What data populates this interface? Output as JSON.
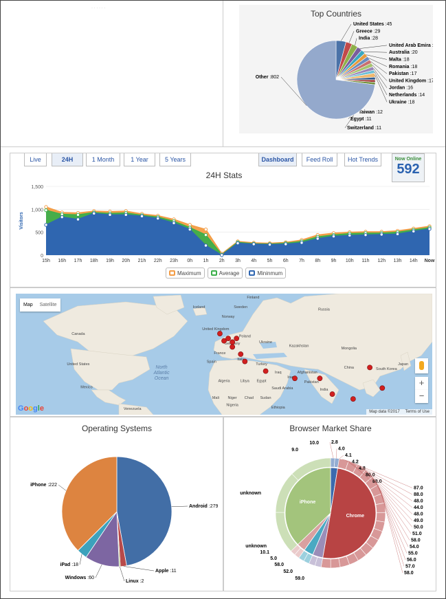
{
  "top_left": {
    "faint_text": "·  ·  ·  ·  ·  ·"
  },
  "top_countries": {
    "title": "Top Countries",
    "chart_data": {
      "type": "pie",
      "title": "Top Countries",
      "slices": [
        {
          "label": "United States",
          "value": 45,
          "color": "#4a72a8"
        },
        {
          "label": "Greece",
          "value": 29,
          "color": "#c24a4a"
        },
        {
          "label": "India",
          "value": 28,
          "color": "#8eb04a"
        },
        {
          "label": "United Arab Emira",
          "value": 23,
          "color": "#7a5e9e"
        },
        {
          "label": "Australia",
          "value": 20,
          "color": "#3aa8c0"
        },
        {
          "label": "Malta",
          "value": 18,
          "color": "#e59a3e"
        },
        {
          "label": "Romania",
          "value": 18,
          "color": "#6a8cc0"
        },
        {
          "label": "Pakistan",
          "value": 17,
          "color": "#c87070"
        },
        {
          "label": "United Kingdom",
          "value": 17,
          "color": "#a6c46e"
        },
        {
          "label": "Jordan",
          "value": 16,
          "color": "#9a86b8"
        },
        {
          "label": "Netherlands",
          "value": 14,
          "color": "#6cc0d6"
        },
        {
          "label": "Ukraine",
          "value": 18,
          "color": "#f0b86e"
        },
        {
          "label": "Taiwan",
          "value": 12,
          "color": "#2f5a8e"
        },
        {
          "label": "Egypt",
          "value": 11,
          "color": "#9e3535"
        },
        {
          "label": "Switzerland",
          "value": 11,
          "color": "#6e8e35"
        },
        {
          "label": "Other",
          "value": 802,
          "color": "#94a9cc"
        }
      ]
    }
  },
  "stats": {
    "tabs": [
      "Live",
      "24H",
      "1 Month",
      "1 Year",
      "5 Years"
    ],
    "active_tab": "24H",
    "right_tabs": [
      "Dashboard",
      "Feed Roll",
      "Hot Trends"
    ],
    "active_right_tab": "Dashboard",
    "now_online_label": "Now Online",
    "now_online_value": "592",
    "chart_data": {
      "type": "area",
      "title": "24H Stats",
      "ylabel": "Visitors",
      "ylim": [
        0,
        1500
      ],
      "yticks": [
        "0",
        "500",
        "1,000",
        "1,500"
      ],
      "categories": [
        "15h",
        "16h",
        "17h",
        "18h",
        "19h",
        "20h",
        "21h",
        "22h",
        "23h",
        "0h",
        "1h",
        "2h",
        "3h",
        "4h",
        "5h",
        "6h",
        "7h",
        "8h",
        "9h",
        "10h",
        "11h",
        "12h",
        "13h",
        "14h",
        "Now"
      ],
      "series": [
        {
          "name": "Maximum",
          "color": "#f39c45",
          "values": [
            1050,
            930,
            920,
            960,
            950,
            960,
            900,
            860,
            780,
            660,
            560,
            30,
            300,
            270,
            260,
            280,
            330,
            440,
            480,
            500,
            510,
            510,
            530,
            580,
            630
          ]
        },
        {
          "name": "Average",
          "color": "#3cae4a",
          "values": [
            980,
            890,
            880,
            930,
            910,
            920,
            870,
            830,
            740,
            600,
            440,
            10,
            280,
            250,
            240,
            260,
            300,
            400,
            440,
            470,
            480,
            480,
            500,
            550,
            600
          ]
        },
        {
          "name": "Mininmum",
          "color": "#2f66b0",
          "values": [
            660,
            830,
            780,
            910,
            880,
            880,
            850,
            800,
            700,
            560,
            210,
            0,
            260,
            240,
            230,
            240,
            270,
            360,
            410,
            430,
            440,
            450,
            460,
            520,
            570
          ]
        }
      ]
    }
  },
  "map": {
    "type_buttons": [
      "Map",
      "Satellite"
    ],
    "labels": [
      {
        "text": "Iceland",
        "lx": 0.44,
        "ly": 0.12
      },
      {
        "text": "Finland",
        "lx": 0.57,
        "ly": 0.04
      },
      {
        "text": "Sweden",
        "lx": 0.54,
        "ly": 0.12
      },
      {
        "text": "Norway",
        "lx": 0.51,
        "ly": 0.2
      },
      {
        "text": "Russia",
        "lx": 0.74,
        "ly": 0.14
      },
      {
        "text": "Canada",
        "lx": 0.15,
        "ly": 0.34
      },
      {
        "text": "United Kingdom",
        "lx": 0.48,
        "ly": 0.3
      },
      {
        "text": "Poland",
        "lx": 0.55,
        "ly": 0.36
      },
      {
        "text": "Ukraine",
        "lx": 0.6,
        "ly": 0.41
      },
      {
        "text": "Germany",
        "lx": 0.52,
        "ly": 0.42
      },
      {
        "text": "Kazakhstan",
        "lx": 0.68,
        "ly": 0.44
      },
      {
        "text": "Mongolia",
        "lx": 0.8,
        "ly": 0.46
      },
      {
        "text": "France",
        "lx": 0.49,
        "ly": 0.5
      },
      {
        "text": "Spain",
        "lx": 0.47,
        "ly": 0.57
      },
      {
        "text": "Italy",
        "lx": 0.54,
        "ly": 0.55
      },
      {
        "text": "Turkey",
        "lx": 0.59,
        "ly": 0.59
      },
      {
        "text": "United States",
        "lx": 0.15,
        "ly": 0.59
      },
      {
        "text": "North\nAtlantic\nOcean",
        "lx": 0.35,
        "ly": 0.62
      },
      {
        "text": "China",
        "lx": 0.8,
        "ly": 0.62
      },
      {
        "text": "South Korea",
        "lx": 0.89,
        "ly": 0.63
      },
      {
        "text": "Japan",
        "lx": 0.93,
        "ly": 0.59
      },
      {
        "text": "Iraq",
        "lx": 0.63,
        "ly": 0.66
      },
      {
        "text": "Iran",
        "lx": 0.66,
        "ly": 0.7
      },
      {
        "text": "Afghanistan",
        "lx": 0.7,
        "ly": 0.66
      },
      {
        "text": "Algeria",
        "lx": 0.5,
        "ly": 0.73
      },
      {
        "text": "Libya",
        "lx": 0.55,
        "ly": 0.73
      },
      {
        "text": "Egypt",
        "lx": 0.59,
        "ly": 0.73
      },
      {
        "text": "Pakistan",
        "lx": 0.71,
        "ly": 0.74
      },
      {
        "text": "Saudi Arabia",
        "lx": 0.64,
        "ly": 0.79
      },
      {
        "text": "India",
        "lx": 0.74,
        "ly": 0.8
      },
      {
        "text": "Mexico",
        "lx": 0.17,
        "ly": 0.78
      },
      {
        "text": "Mali",
        "lx": 0.48,
        "ly": 0.87
      },
      {
        "text": "Niger",
        "lx": 0.52,
        "ly": 0.87
      },
      {
        "text": "Chad",
        "lx": 0.56,
        "ly": 0.87
      },
      {
        "text": "Sudan",
        "lx": 0.6,
        "ly": 0.87
      },
      {
        "text": "Nigeria",
        "lx": 0.52,
        "ly": 0.93
      },
      {
        "text": "Ethiopia",
        "lx": 0.63,
        "ly": 0.95
      },
      {
        "text": "Venezuela",
        "lx": 0.28,
        "ly": 0.96
      }
    ],
    "markers": [
      {
        "lx": 0.49,
        "ly": 0.33
      },
      {
        "lx": 0.5,
        "ly": 0.39
      },
      {
        "lx": 0.51,
        "ly": 0.37
      },
      {
        "lx": 0.52,
        "ly": 0.4
      },
      {
        "lx": 0.53,
        "ly": 0.37
      },
      {
        "lx": 0.52,
        "ly": 0.44
      },
      {
        "lx": 0.54,
        "ly": 0.5
      },
      {
        "lx": 0.55,
        "ly": 0.56
      },
      {
        "lx": 0.6,
        "ly": 0.64
      },
      {
        "lx": 0.67,
        "ly": 0.7
      },
      {
        "lx": 0.73,
        "ly": 0.7
      },
      {
        "lx": 0.76,
        "ly": 0.83
      },
      {
        "lx": 0.85,
        "ly": 0.61
      },
      {
        "lx": 0.88,
        "ly": 0.78
      },
      {
        "lx": 0.81,
        "ly": 0.87
      }
    ],
    "attribution": [
      "Map data ©2017",
      "Terms of Use"
    ],
    "google": "Google"
  },
  "os": {
    "title": "Operating Systems",
    "chart_data": {
      "type": "pie",
      "title": "Operating Systems",
      "slices": [
        {
          "label": "Android",
          "value": 279,
          "color": "#426ea6"
        },
        {
          "label": "Apple",
          "value": 11,
          "color": "#b84a4a"
        },
        {
          "label": "Linux",
          "value": 2,
          "color": "#8cae4e"
        },
        {
          "label": "Windows",
          "value": 60,
          "color": "#7d66a2"
        },
        {
          "label": "iPad",
          "value": 18,
          "color": "#3ca2bc"
        },
        {
          "label": "iPhone",
          "value": 222,
          "color": "#dd8440"
        }
      ]
    }
  },
  "browser": {
    "title": "Browser Market Share",
    "chart_data": {
      "type": "pie",
      "title": "Browser Market Share",
      "inner": [
        {
          "label": "",
          "value": 15,
          "color": "#3b6aad"
        },
        {
          "label": "Chrome",
          "value": 300,
          "color": "#b84444"
        },
        {
          "label": "",
          "value": 22,
          "color": "#9b8db8"
        },
        {
          "label": "",
          "value": 20,
          "color": "#4aa9c2"
        },
        {
          "label": "",
          "value": 18,
          "color": "#d9a0a0"
        },
        {
          "label": "iPhone",
          "value": 222,
          "color": "#a3c47c"
        }
      ],
      "outer_labels_right": [
        "2.8",
        "4.0",
        "4.1",
        "4.2",
        "4.8",
        "80.0",
        "88.0",
        "87.0",
        "88.0",
        "48.0",
        "44.0",
        "48.0",
        "49.0",
        "50.0",
        "51.0",
        "58.0",
        "54.0",
        "55.0",
        "56.0",
        "57.0",
        "58.0"
      ],
      "outer_labels_left": [
        "10.0",
        "9.0",
        "unknown",
        "unknown",
        "10.1",
        "5.0",
        "58.0",
        "52.0",
        "59.0"
      ]
    }
  }
}
